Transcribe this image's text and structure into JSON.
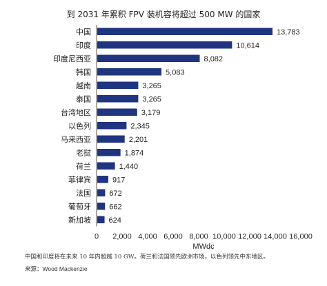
{
  "chart_data": {
    "type": "bar",
    "orientation": "horizontal",
    "title": "到 2031 年累积 FPV 装机容将超过 500 MW 的国家",
    "xlabel": "MWdc",
    "ylabel": "",
    "categories": [
      "中国",
      "印度",
      "印度尼西亚",
      "韩国",
      "越南",
      "泰国",
      "台湾地区",
      "以色列",
      "马来西亚",
      "老挝",
      "荷兰",
      "菲律宾",
      "法国",
      "葡萄牙",
      "新加坡"
    ],
    "values": [
      13783,
      10614,
      8082,
      5083,
      3265,
      3265,
      3179,
      2345,
      2201,
      1874,
      1440,
      917,
      672,
      662,
      624
    ],
    "value_labels": [
      "13,783",
      "10,614",
      "8,082",
      "5,083",
      "3,265",
      "3,265",
      "3,179",
      "2,345",
      "2,201",
      "1,874",
      "1,440",
      "917",
      "672",
      "662",
      "624"
    ],
    "xlim": [
      0,
      16000
    ],
    "xticks": [
      "0",
      "2,000",
      "4,000",
      "6,000",
      "8,000",
      "10,000",
      "12,000",
      "14,000",
      "16,000"
    ],
    "bar_color": "#1f3580",
    "grid": false
  },
  "footnote": "中国和印度将在未来 10 年内超越 10 GW。荷兰和法国领先欧洲市场，以色列领先中东地区。",
  "source": "来源：Wood Mackenzie"
}
